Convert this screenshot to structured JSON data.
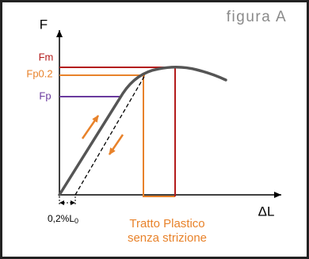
{
  "title": "figura A",
  "axes": {
    "y": "F",
    "x": "ΔL"
  },
  "levels": {
    "fm": "Fm",
    "fp02": "Fp0.2",
    "fp": "Fp"
  },
  "offset": {
    "main": "0,2%L",
    "sub": "0"
  },
  "region": {
    "line1": "Tratto Plastico",
    "line2": "senza strizione"
  }
}
